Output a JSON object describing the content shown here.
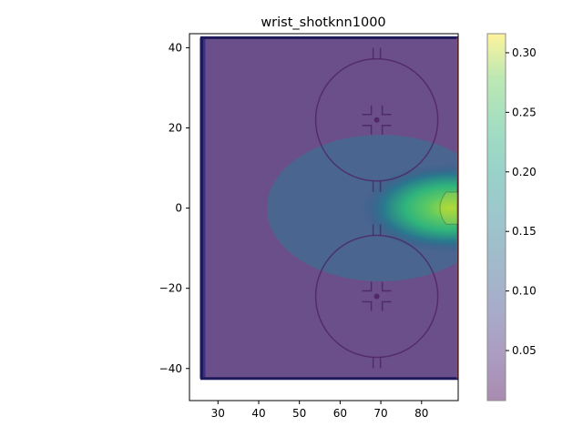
{
  "chart_data": {
    "type": "heatmap",
    "title": "wrist_shotknn1000",
    "xlabel": "",
    "ylabel": "",
    "xlim": [
      23,
      89
    ],
    "ylim": [
      -48,
      43.5
    ],
    "xticks": [
      30,
      40,
      50,
      60,
      70,
      80
    ],
    "yticks": [
      -40,
      -20,
      0,
      20,
      40
    ],
    "colorbar": {
      "range": [
        0.008,
        0.316
      ],
      "ticks": [
        0.05,
        0.1,
        0.15,
        0.2,
        0.25,
        0.3
      ],
      "tick_labels": [
        "0.05",
        "0.10",
        "0.15",
        "0.20",
        "0.25",
        "0.30"
      ],
      "colormap": "viridis"
    },
    "hotspot": {
      "x": 87,
      "y": 0,
      "peak": 0.3
    },
    "background_level": 0.06,
    "rink_overlay": {
      "faceoff_circles": [
        {
          "x": 69,
          "y": 22,
          "r": 15
        },
        {
          "x": 69,
          "y": -22,
          "r": 15
        }
      ],
      "crease": {
        "x": 89,
        "y": 0
      },
      "boards_x": [
        26,
        89
      ],
      "boards_y": [
        -42.5,
        42.5
      ]
    }
  }
}
